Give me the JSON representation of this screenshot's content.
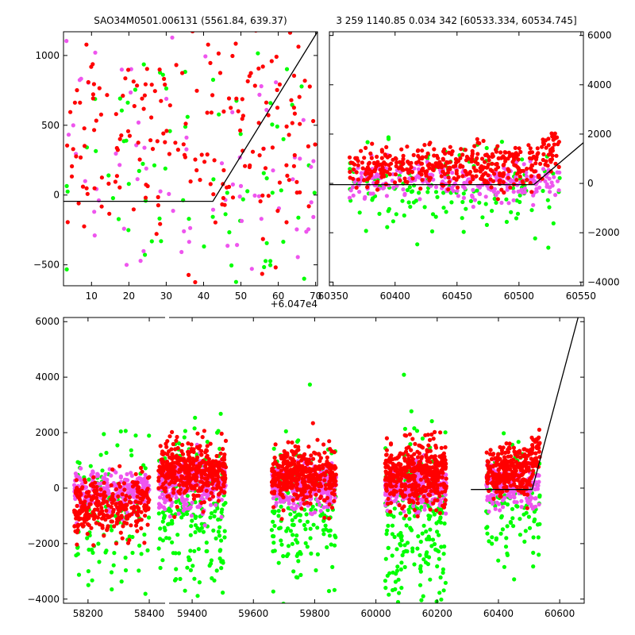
{
  "colors": {
    "red": "#ff0000",
    "green": "#00ff00",
    "magenta": "#ee55ee",
    "model_line": "#000000",
    "background": "#ffffff"
  },
  "chart_data": [
    {
      "id": "top-left",
      "type": "scatter",
      "title": "SAO34M0501.006131 (5561.84, 639.37)",
      "xlim": [
        2.5,
        70.5
      ],
      "ylim": [
        -650,
        1170
      ],
      "x_ticks": [
        10,
        20,
        30,
        40,
        50,
        60,
        70
      ],
      "x_tick_labels": [
        "10",
        "20",
        "30",
        "40",
        "50",
        "60",
        "70"
      ],
      "x_offset_label": "+6.047e4",
      "y_ticks": [
        -500,
        0,
        500,
        1000
      ],
      "y_tick_labels": [
        "−500",
        "0",
        "500",
        "1000"
      ],
      "y_axis_side": "left",
      "model_line": {
        "x": [
          2.5,
          42.5,
          70.5
        ],
        "y": [
          -45,
          -45,
          1170
        ]
      },
      "series": [
        {
          "color": "red",
          "count": 200,
          "x_range": [
            3,
            70
          ],
          "y_center": 450,
          "y_spread": 420
        },
        {
          "color": "magenta",
          "count": 75,
          "x_range": [
            3,
            70
          ],
          "y_center": 150,
          "y_spread": 450
        },
        {
          "color": "green",
          "count": 75,
          "x_range": [
            3,
            70
          ],
          "y_center": 200,
          "y_spread": 450
        }
      ]
    },
    {
      "id": "top-right",
      "type": "scatter",
      "title": "3 259 1140.85 0.034 342 [60533.334, 60534.745]",
      "xlim": [
        60347,
        60552
      ],
      "ylim": [
        -4150,
        6150
      ],
      "x_ticks": [
        60350,
        60400,
        60450,
        60500,
        60550
      ],
      "x_tick_labels": [
        "60350",
        "60400",
        "60450",
        "60500",
        "60550"
      ],
      "y_ticks": [
        -4000,
        -2000,
        0,
        2000,
        4000,
        6000
      ],
      "y_tick_labels": [
        "−4000",
        "−2000",
        "0",
        "2000",
        "4000",
        "6000"
      ],
      "y_axis_side": "right",
      "model_line": {
        "x": [
          60347,
          60512,
          60552
        ],
        "y": [
          -50,
          -50,
          1650
        ]
      },
      "series": [
        {
          "color": "red",
          "count": 420,
          "x_range": [
            60363,
            60533
          ],
          "y_center": 650,
          "y_spread": 450
        },
        {
          "color": "magenta",
          "count": 260,
          "x_range": [
            60363,
            60533
          ],
          "y_center": 50,
          "y_spread": 350
        },
        {
          "color": "green",
          "count": 150,
          "x_range": [
            60363,
            60533
          ],
          "y_center": -300,
          "y_spread": 900
        }
      ]
    },
    {
      "id": "bottom",
      "type": "scatter",
      "title": "",
      "xlim": [
        58120,
        60680
      ],
      "ylim": [
        -4150,
        6150
      ],
      "x_ticks": [
        58200,
        58400,
        59400,
        59600,
        59800,
        60000,
        60200,
        60400,
        60600
      ],
      "x_tick_labels": [
        "58200",
        "58400",
        "59400",
        "59600",
        "59800",
        "60000",
        "60200",
        "60400",
        "60600"
      ],
      "y_ticks": [
        -4000,
        -2000,
        0,
        2000,
        4000,
        6000
      ],
      "y_tick_labels": [
        "−4000",
        "−2000",
        "0",
        "2000",
        "4000",
        "6000"
      ],
      "y_axis_side": "left",
      "axis_break": {
        "from": 58420,
        "to": 58430
      },
      "model_line": {
        "x": [
          60310,
          60510,
          60660
        ],
        "y": [
          -50,
          -50,
          6150
        ]
      },
      "groups": [
        {
          "x_range": [
            58155,
            58400
          ],
          "red": {
            "count": 300,
            "y_center": -700,
            "y_spread": 550
          },
          "magenta": {
            "count": 250,
            "y_center": -100,
            "y_spread": 350
          },
          "green": {
            "count": 120,
            "y_center": -900,
            "y_spread": 1300
          }
        },
        {
          "x_range": [
            59290,
            59510
          ],
          "red": {
            "count": 400,
            "y_center": 650,
            "y_spread": 500
          },
          "magenta": {
            "count": 300,
            "y_center": 150,
            "y_spread": 450
          },
          "green": {
            "count": 200,
            "y_center": -1100,
            "y_spread": 1500
          }
        },
        {
          "x_range": [
            59660,
            59870
          ],
          "red": {
            "count": 400,
            "y_center": 450,
            "y_spread": 500
          },
          "magenta": {
            "count": 300,
            "y_center": 50,
            "y_spread": 400
          },
          "green": {
            "count": 180,
            "y_center": -900,
            "y_spread": 1300
          }
        },
        {
          "x_range": [
            60030,
            60230
          ],
          "red": {
            "count": 420,
            "y_center": 500,
            "y_spread": 550
          },
          "magenta": {
            "count": 300,
            "y_center": 0,
            "y_spread": 400
          },
          "green": {
            "count": 220,
            "y_center": -1200,
            "y_spread": 1600
          }
        },
        {
          "x_range": [
            60360,
            60535
          ],
          "red": {
            "count": 300,
            "y_center": 600,
            "y_spread": 450
          },
          "magenta": {
            "count": 200,
            "y_center": 50,
            "y_spread": 350
          },
          "green": {
            "count": 120,
            "y_center": -500,
            "y_spread": 1100
          }
        }
      ]
    }
  ]
}
